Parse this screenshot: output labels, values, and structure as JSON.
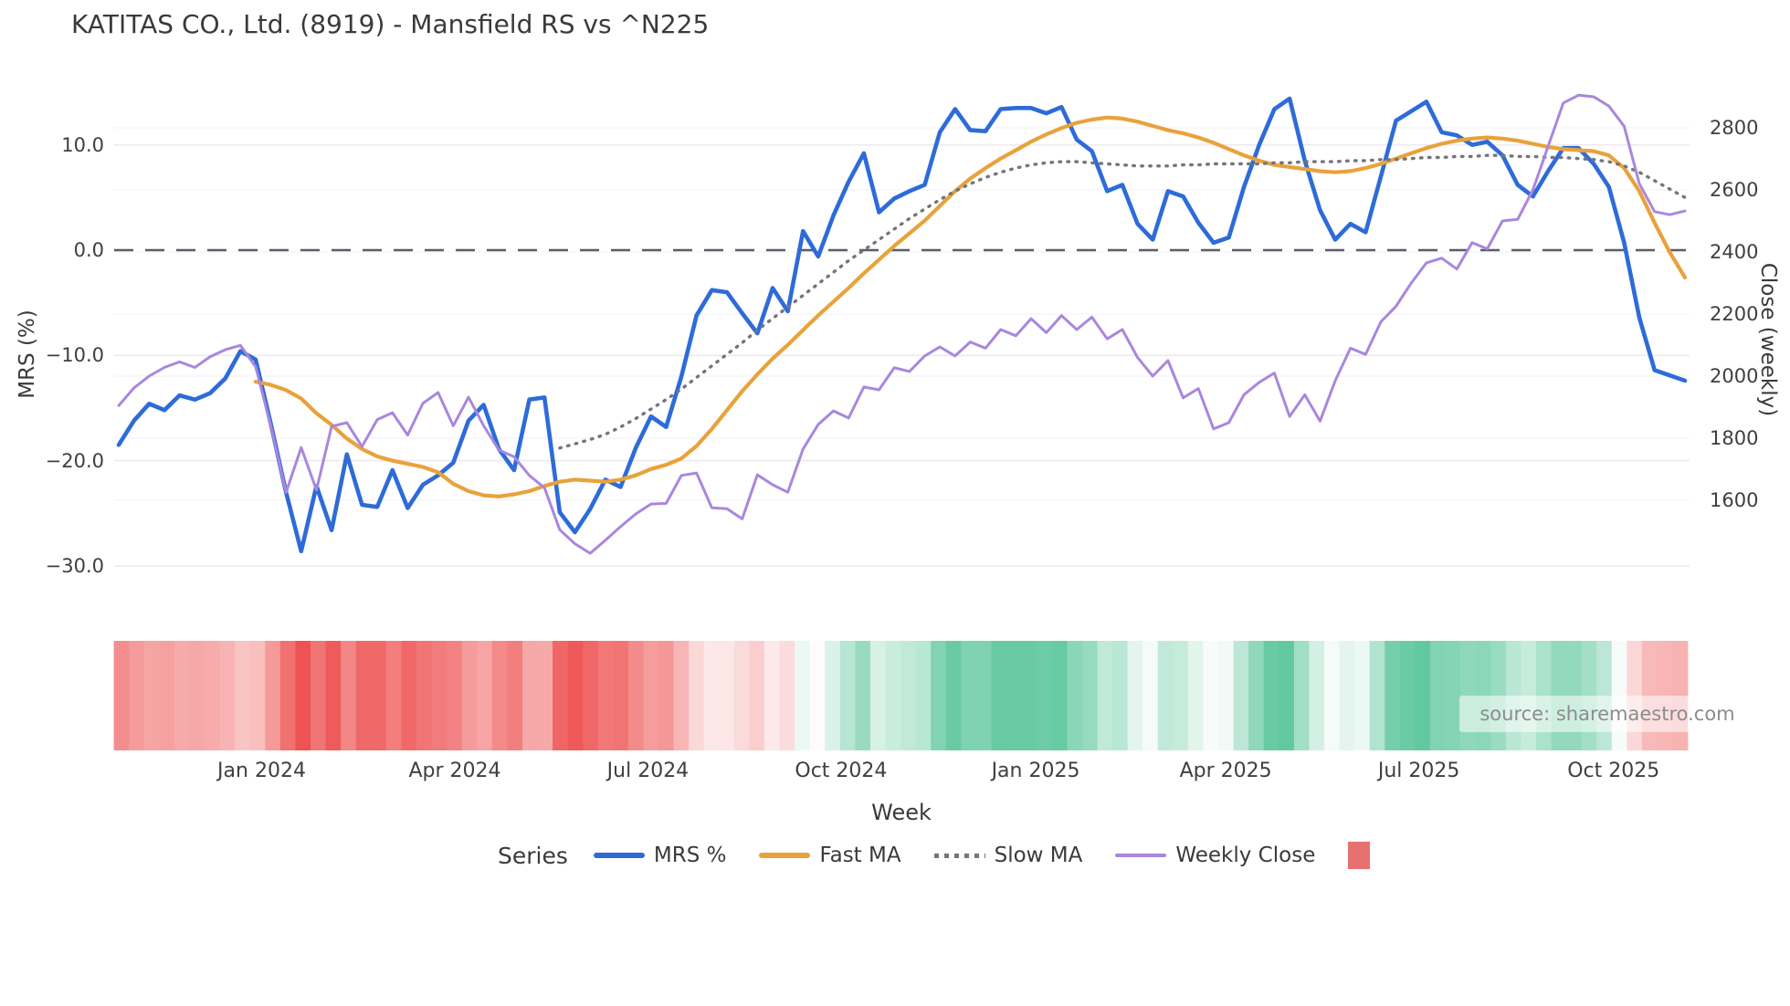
{
  "title": "KATITAS CO., Ltd. (8919) - Mansfield RS vs ^N225",
  "source": "source: sharemaestro.com",
  "axes": {
    "left_label": "MRS (%)",
    "right_label": "Close (weekly)",
    "x_label": "Week",
    "left_ticks": [
      {
        "label": "10.0",
        "value": 10
      },
      {
        "label": "0.0",
        "value": 0
      },
      {
        "label": "−10.0",
        "value": -10
      },
      {
        "label": "−20.0",
        "value": -20
      },
      {
        "label": "−30.0",
        "value": -30
      }
    ],
    "right_ticks": [
      {
        "label": "2800",
        "value": 2800
      },
      {
        "label": "2600",
        "value": 2600
      },
      {
        "label": "2400",
        "value": 2400
      },
      {
        "label": "2200",
        "value": 2200
      },
      {
        "label": "2000",
        "value": 2000
      },
      {
        "label": "1800",
        "value": 1800
      },
      {
        "label": "1600",
        "value": 1600
      }
    ],
    "x_ticks": [
      {
        "label": "Jan 2024",
        "week": 9.4
      },
      {
        "label": "Apr 2024",
        "week": 22.1
      },
      {
        "label": "Jul 2024",
        "week": 34.8
      },
      {
        "label": "Oct 2024",
        "week": 47.5
      },
      {
        "label": "Jan 2025",
        "week": 60.3
      },
      {
        "label": "Apr 2025",
        "week": 72.8
      },
      {
        "label": "Jul 2025",
        "week": 85.5
      },
      {
        "label": "Oct 2025",
        "week": 98.3
      }
    ]
  },
  "legend": {
    "title": "Series",
    "items": [
      {
        "label": "MRS %",
        "color": "#2e6bd9",
        "style": "solid"
      },
      {
        "label": "Fast MA",
        "color": "#e9a23b",
        "style": "solid"
      },
      {
        "label": "Slow MA",
        "color": "#74747c",
        "style": "dotted"
      },
      {
        "label": "Weekly Close",
        "color": "#a987dd",
        "style": "solid"
      },
      {
        "label": "",
        "color": "#e77070",
        "style": "square"
      }
    ]
  },
  "colors": {
    "mrs_line": "#2e6bd9",
    "fast_ma_line": "#e9a23b",
    "slow_ma_line": "#74747c",
    "weekly_close_line": "#a987dd",
    "zero_line": "#5c5c66",
    "gridline": "#ebebf1",
    "heat_negative": "#ee5252",
    "heat_positive": "#62c8a0",
    "legend_swatch": "#e77070"
  },
  "chart_data": {
    "type": "line",
    "title": "KATITAS CO., Ltd. (8919) - Mansfield RS vs ^N225",
    "xlabel": "Week",
    "ylabel_left": "MRS (%)",
    "ylabel_right": "Close (weekly)",
    "x_unit": "weekly points, late Oct 2023 to early Nov 2025",
    "n_points": 104,
    "ylim_left": [
      -32.6,
      16.4
    ],
    "ylim_right": [
      1300,
      2960
    ],
    "grid": true,
    "legend_position": "bottom",
    "zero_reference_line": 0,
    "series": [
      {
        "name": "MRS %",
        "axis": "left",
        "color": "#2e6bd9",
        "style": "solid",
        "width": 4.6,
        "values": [
          -18.5,
          -16.2,
          -14.6,
          -15.2,
          -13.8,
          -14.2,
          -13.6,
          -12.2,
          -9.6,
          -10.4,
          -16.5,
          -23.0,
          -28.6,
          -22.4,
          -26.6,
          -19.4,
          -24.2,
          -24.4,
          -20.9,
          -24.5,
          -22.3,
          -21.4,
          -20.2,
          -16.2,
          -14.7,
          -18.9,
          -20.9,
          -14.2,
          -14.0,
          -24.9,
          -26.8,
          -24.6,
          -21.8,
          -22.5,
          -18.8,
          -15.8,
          -16.8,
          -12.0,
          -6.2,
          -3.8,
          -4.0,
          -6.0,
          -7.9,
          -3.6,
          -5.8,
          1.8,
          -0.6,
          3.3,
          6.5,
          9.2,
          3.6,
          4.9,
          5.6,
          6.2,
          11.2,
          13.4,
          11.4,
          11.3,
          13.4,
          13.5,
          13.5,
          13.0,
          13.6,
          10.5,
          9.4,
          5.6,
          6.2,
          2.5,
          1.0,
          5.6,
          5.1,
          2.6,
          0.7,
          1.2,
          6.0,
          10.0,
          13.4,
          14.4,
          8.5,
          3.8,
          1.0,
          2.5,
          1.7,
          7.0,
          12.3,
          13.2,
          14.1,
          11.2,
          10.9,
          10.0,
          10.3,
          9.0,
          6.2,
          5.1,
          7.5,
          9.7,
          9.7,
          8.2,
          6.0,
          0.7,
          -6.4,
          -11.4,
          -11.9,
          -12.4
        ]
      },
      {
        "name": "Fast MA",
        "axis": "left",
        "color": "#e9a23b",
        "style": "solid",
        "width": 4.2,
        "values": [
          null,
          null,
          null,
          null,
          null,
          null,
          null,
          null,
          null,
          -12.5,
          -12.8,
          -13.3,
          -14.1,
          -15.5,
          -16.6,
          -17.9,
          -18.9,
          -19.6,
          -20.0,
          -20.3,
          -20.6,
          -21.1,
          -22.2,
          -22.9,
          -23.3,
          -23.4,
          -23.2,
          -22.9,
          -22.4,
          -22.0,
          -21.8,
          -21.9,
          -22.0,
          -21.8,
          -21.4,
          -20.8,
          -20.4,
          -19.8,
          -18.6,
          -17.0,
          -15.2,
          -13.4,
          -11.8,
          -10.3,
          -9.0,
          -7.6,
          -6.2,
          -4.9,
          -3.6,
          -2.2,
          -0.9,
          0.4,
          1.6,
          2.8,
          4.2,
          5.6,
          6.8,
          7.8,
          8.7,
          9.5,
          10.3,
          11.0,
          11.6,
          12.1,
          12.4,
          12.6,
          12.5,
          12.2,
          11.8,
          11.4,
          11.1,
          10.7,
          10.2,
          9.6,
          9.0,
          8.5,
          8.1,
          7.9,
          7.7,
          7.5,
          7.4,
          7.5,
          7.8,
          8.2,
          8.7,
          9.2,
          9.7,
          10.1,
          10.4,
          10.6,
          10.7,
          10.6,
          10.4,
          10.1,
          9.8,
          9.6,
          9.5,
          9.4,
          9.0,
          7.8,
          5.6,
          2.6,
          -0.2,
          -2.6
        ]
      },
      {
        "name": "Slow MA",
        "axis": "left",
        "color": "#74747c",
        "style": "dotted",
        "width": 3.4,
        "values": [
          null,
          null,
          null,
          null,
          null,
          null,
          null,
          null,
          null,
          null,
          null,
          null,
          null,
          null,
          null,
          null,
          null,
          null,
          null,
          null,
          null,
          null,
          null,
          null,
          null,
          null,
          null,
          null,
          null,
          -18.8,
          -18.4,
          -18.0,
          -17.5,
          -16.8,
          -16.0,
          -15.1,
          -14.2,
          -13.2,
          -12.1,
          -11.0,
          -9.9,
          -8.8,
          -7.6,
          -6.5,
          -5.4,
          -4.3,
          -3.2,
          -2.1,
          -1.0,
          0.0,
          1.0,
          2.0,
          3.0,
          3.9,
          4.8,
          5.6,
          6.3,
          6.9,
          7.4,
          7.8,
          8.1,
          8.3,
          8.4,
          8.4,
          8.3,
          8.2,
          8.1,
          8.0,
          8.0,
          8.0,
          8.1,
          8.1,
          8.2,
          8.2,
          8.2,
          8.2,
          8.3,
          8.3,
          8.4,
          8.4,
          8.4,
          8.5,
          8.5,
          8.6,
          8.6,
          8.7,
          8.8,
          8.8,
          8.9,
          8.9,
          9.0,
          9.0,
          8.9,
          8.9,
          8.8,
          8.8,
          8.7,
          8.6,
          8.4,
          8.0,
          7.4,
          6.6,
          5.8,
          5.0
        ]
      },
      {
        "name": "Weekly Close",
        "axis": "right",
        "color": "#a987dd",
        "style": "solid",
        "width": 3.0,
        "values": [
          1905,
          1962,
          2000,
          2028,
          2046,
          2028,
          2062,
          2085,
          2099,
          2030,
          1840,
          1625,
          1770,
          1633,
          1838,
          1850,
          1773,
          1860,
          1882,
          1810,
          1912,
          1947,
          1840,
          1932,
          1840,
          1762,
          1740,
          1680,
          1640,
          1505,
          1460,
          1429,
          1471,
          1515,
          1556,
          1588,
          1590,
          1680,
          1688,
          1576,
          1573,
          1540,
          1682,
          1650,
          1626,
          1765,
          1844,
          1888,
          1865,
          1965,
          1956,
          2027,
          2015,
          2065,
          2094,
          2065,
          2110,
          2090,
          2150,
          2130,
          2185,
          2140,
          2195,
          2150,
          2190,
          2120,
          2150,
          2060,
          2000,
          2050,
          1930,
          1960,
          1830,
          1850,
          1940,
          1980,
          2010,
          1870,
          1940,
          1855,
          1985,
          2090,
          2070,
          2175,
          2225,
          2300,
          2365,
          2380,
          2345,
          2430,
          2410,
          2500,
          2505,
          2600,
          2740,
          2880,
          2905,
          2900,
          2870,
          2805,
          2620,
          2530,
          2520,
          2532
        ]
      }
    ],
    "heatmap": {
      "description": "weekly color strip below plot mapping MRS % value: red negative, white near zero, green positive",
      "maps_series": "MRS %",
      "negative_color": "#ee5252",
      "positive_color": "#62c8a0",
      "neutral_color": "#ffffff",
      "neg_cap": 28,
      "pos_cap": 14
    }
  }
}
